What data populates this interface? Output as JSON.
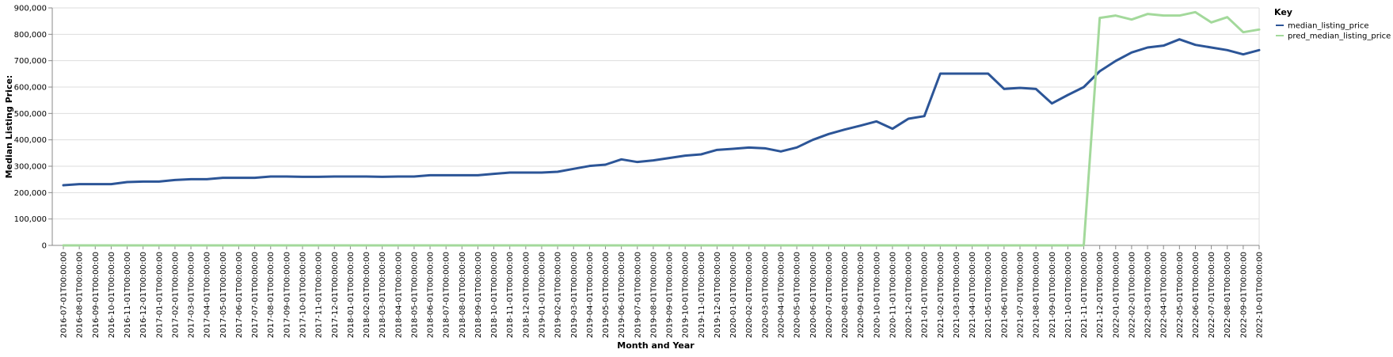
{
  "chart_data": {
    "type": "line",
    "xlabel": "Month and Year",
    "ylabel": "Median Listing Price:",
    "ylim": [
      0,
      900000
    ],
    "yticks": [
      0,
      100000,
      200000,
      300000,
      400000,
      500000,
      600000,
      700000,
      800000,
      900000
    ],
    "ytick_labels": [
      "0",
      "100,000",
      "200,000",
      "300,000",
      "400,000",
      "500,000",
      "600,000",
      "700,000",
      "800,000",
      "900,000"
    ],
    "grid": true,
    "legend": {
      "title": "Key",
      "placement": "right"
    },
    "x": [
      "2016-07-01T00:00:00",
      "2016-08-01T00:00:00",
      "2016-09-01T00:00:00",
      "2016-10-01T00:00:00",
      "2016-11-01T00:00:00",
      "2016-12-01T00:00:00",
      "2017-01-01T00:00:00",
      "2017-02-01T00:00:00",
      "2017-03-01T00:00:00",
      "2017-04-01T00:00:00",
      "2017-05-01T00:00:00",
      "2017-06-01T00:00:00",
      "2017-07-01T00:00:00",
      "2017-08-01T00:00:00",
      "2017-09-01T00:00:00",
      "2017-10-01T00:00:00",
      "2017-11-01T00:00:00",
      "2017-12-01T00:00:00",
      "2018-01-01T00:00:00",
      "2018-02-01T00:00:00",
      "2018-03-01T00:00:00",
      "2018-04-01T00:00:00",
      "2018-05-01T00:00:00",
      "2018-06-01T00:00:00",
      "2018-07-01T00:00:00",
      "2018-08-01T00:00:00",
      "2018-09-01T00:00:00",
      "2018-10-01T00:00:00",
      "2018-11-01T00:00:00",
      "2018-12-01T00:00:00",
      "2019-01-01T00:00:00",
      "2019-02-01T00:00:00",
      "2019-03-01T00:00:00",
      "2019-04-01T00:00:00",
      "2019-05-01T00:00:00",
      "2019-06-01T00:00:00",
      "2019-07-01T00:00:00",
      "2019-08-01T00:00:00",
      "2019-09-01T00:00:00",
      "2019-10-01T00:00:00",
      "2019-11-01T00:00:00",
      "2019-12-01T00:00:00",
      "2020-01-01T00:00:00",
      "2020-02-01T00:00:00",
      "2020-03-01T00:00:00",
      "2020-04-01T00:00:00",
      "2020-05-01T00:00:00",
      "2020-06-01T00:00:00",
      "2020-07-01T00:00:00",
      "2020-08-01T00:00:00",
      "2020-09-01T00:00:00",
      "2020-10-01T00:00:00",
      "2020-11-01T00:00:00",
      "2020-12-01T00:00:00",
      "2021-01-01T00:00:00",
      "2021-02-01T00:00:00",
      "2021-03-01T00:00:00",
      "2021-04-01T00:00:00",
      "2021-05-01T00:00:00",
      "2021-06-01T00:00:00",
      "2021-07-01T00:00:00",
      "2021-08-01T00:00:00",
      "2021-09-01T00:00:00",
      "2021-10-01T00:00:00",
      "2021-11-01T00:00:00",
      "2021-12-01T00:00:00",
      "2022-01-01T00:00:00",
      "2022-02-01T00:00:00",
      "2022-03-01T00:00:00",
      "2022-04-01T00:00:00",
      "2022-05-01T00:00:00",
      "2022-06-01T00:00:00",
      "2022-07-01T00:00:00",
      "2022-08-01T00:00:00",
      "2022-09-01T00:00:00",
      "2022-10-01T00:00:00"
    ],
    "series": [
      {
        "name": "median_listing_price",
        "color": "#2c5597",
        "values": [
          228000,
          232000,
          232000,
          232000,
          240000,
          242000,
          242000,
          248000,
          251000,
          251000,
          256000,
          256000,
          256000,
          261000,
          261000,
          260000,
          260000,
          261000,
          261000,
          261000,
          260000,
          261000,
          261000,
          266000,
          266000,
          266000,
          266000,
          271000,
          276000,
          276000,
          276000,
          279000,
          290000,
          301000,
          306000,
          326000,
          316000,
          322000,
          331000,
          340000,
          345000,
          362000,
          366000,
          371000,
          368000,
          356000,
          371000,
          400000,
          422000,
          439000,
          454000,
          470000,
          442000,
          480000,
          490000,
          651000,
          651000,
          651000,
          651000,
          593000,
          597000,
          593000,
          538000,
          570000,
          600000,
          660000,
          699000,
          731000,
          750000,
          757000,
          781000,
          760000,
          750000,
          740000,
          724000,
          740000
        ]
      },
      {
        "name": "pred_median_listing_price",
        "color": "#a3d99b",
        "values": [
          0,
          0,
          0,
          0,
          0,
          0,
          0,
          0,
          0,
          0,
          0,
          0,
          0,
          0,
          0,
          0,
          0,
          0,
          0,
          0,
          0,
          0,
          0,
          0,
          0,
          0,
          0,
          0,
          0,
          0,
          0,
          0,
          0,
          0,
          0,
          0,
          0,
          0,
          0,
          0,
          0,
          0,
          0,
          0,
          0,
          0,
          0,
          0,
          0,
          0,
          0,
          0,
          0,
          0,
          0,
          0,
          0,
          0,
          0,
          0,
          0,
          0,
          0,
          0,
          0,
          862000,
          871000,
          856000,
          877000,
          871000,
          871000,
          884000,
          845000,
          865000,
          808000,
          818000
        ]
      }
    ]
  }
}
